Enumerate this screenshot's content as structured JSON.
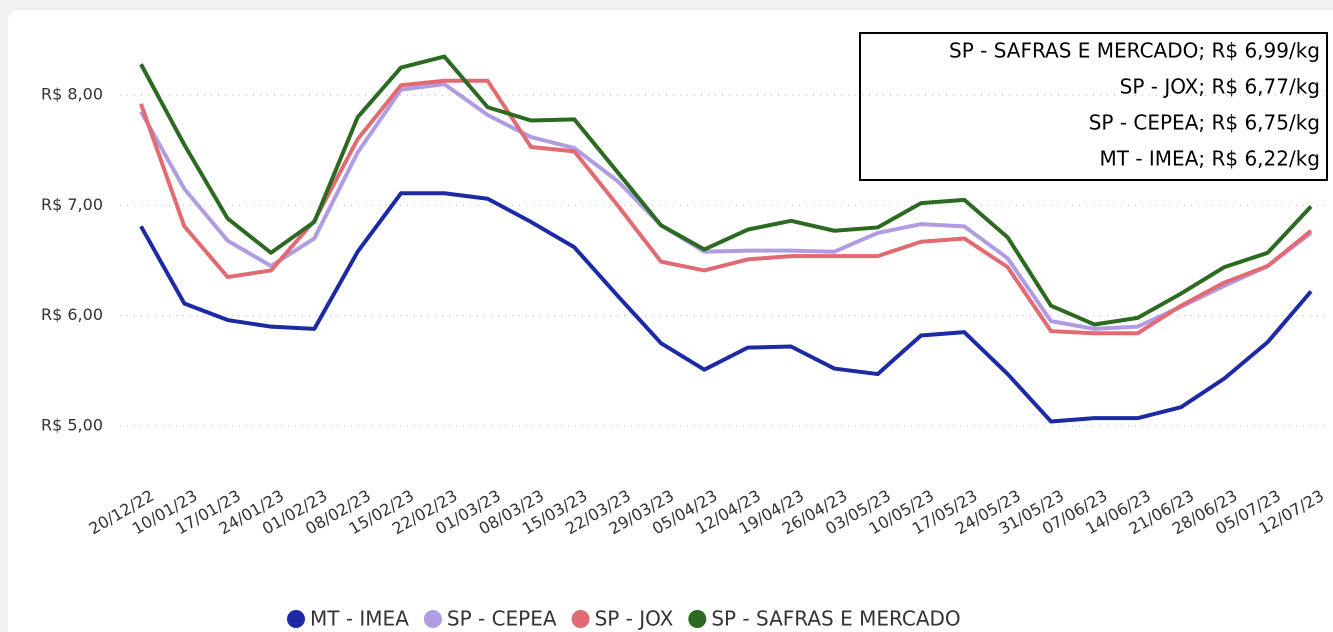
{
  "chart_data": {
    "type": "line",
    "categories": [
      "20/12/22",
      "10/01/23",
      "17/01/23",
      "24/01/23",
      "01/02/23",
      "08/02/23",
      "15/02/23",
      "22/02/23",
      "01/03/23",
      "08/03/23",
      "15/03/23",
      "22/03/23",
      "29/03/23",
      "05/04/23",
      "12/04/23",
      "19/04/23",
      "26/04/23",
      "03/05/23",
      "10/05/23",
      "17/05/23",
      "24/05/23",
      "31/05/23",
      "07/06/23",
      "14/06/23",
      "21/06/23",
      "28/06/23",
      "05/07/23",
      "12/07/23"
    ],
    "series": [
      {
        "name": "MT - IMEA",
        "color": "#1c2aa6",
        "values": [
          6.81,
          6.11,
          5.96,
          5.9,
          5.88,
          6.58,
          7.11,
          7.11,
          7.06,
          6.85,
          6.62,
          6.18,
          5.75,
          5.51,
          5.71,
          5.72,
          5.52,
          5.47,
          5.82,
          5.85,
          5.47,
          5.04,
          5.07,
          5.07,
          5.17,
          5.43,
          5.76,
          6.22
        ]
      },
      {
        "name": "SP - CEPEA",
        "color": "#b09ce2",
        "values": [
          7.85,
          7.15,
          6.68,
          6.45,
          6.7,
          7.48,
          8.05,
          8.1,
          7.82,
          7.62,
          7.52,
          7.22,
          6.82,
          6.58,
          6.59,
          6.59,
          6.58,
          6.75,
          6.83,
          6.81,
          6.52,
          5.95,
          5.88,
          5.9,
          6.08,
          6.27,
          6.45,
          6.75
        ]
      },
      {
        "name": "SP - JOX",
        "color": "#e26a72",
        "values": [
          7.92,
          6.81,
          6.35,
          6.41,
          6.86,
          7.6,
          8.09,
          8.13,
          8.13,
          7.53,
          7.49,
          7.0,
          6.49,
          6.41,
          6.51,
          6.54,
          6.54,
          6.54,
          6.67,
          6.7,
          6.44,
          5.86,
          5.84,
          5.84,
          6.09,
          6.3,
          6.45,
          6.77
        ]
      },
      {
        "name": "SP - SAFRAS E MERCADO",
        "color": "#2b6a20",
        "values": [
          8.28,
          7.55,
          6.88,
          6.57,
          6.85,
          7.8,
          8.25,
          8.35,
          7.89,
          7.77,
          7.78,
          7.3,
          6.82,
          6.6,
          6.78,
          6.86,
          6.77,
          6.8,
          7.02,
          7.05,
          6.71,
          6.09,
          5.92,
          5.98,
          6.2,
          6.44,
          6.57,
          6.99
        ]
      }
    ],
    "annotations": [
      "SP - SAFRAS E MERCADO; R$ 6,99/kg",
      "SP - JOX; R$ 6,77/kg",
      "SP - CEPEA; R$ 6,75/kg",
      "MT - IMEA; R$ 6,22/kg"
    ],
    "ylim": [
      4.6,
      8.5
    ],
    "yticks": [
      {
        "value": 5,
        "label": "R$ 5,00"
      },
      {
        "value": 6,
        "label": "R$ 6,00"
      },
      {
        "value": 7,
        "label": "R$ 7,00"
      },
      {
        "value": 8,
        "label": "R$ 8,00"
      }
    ],
    "grid": true
  }
}
